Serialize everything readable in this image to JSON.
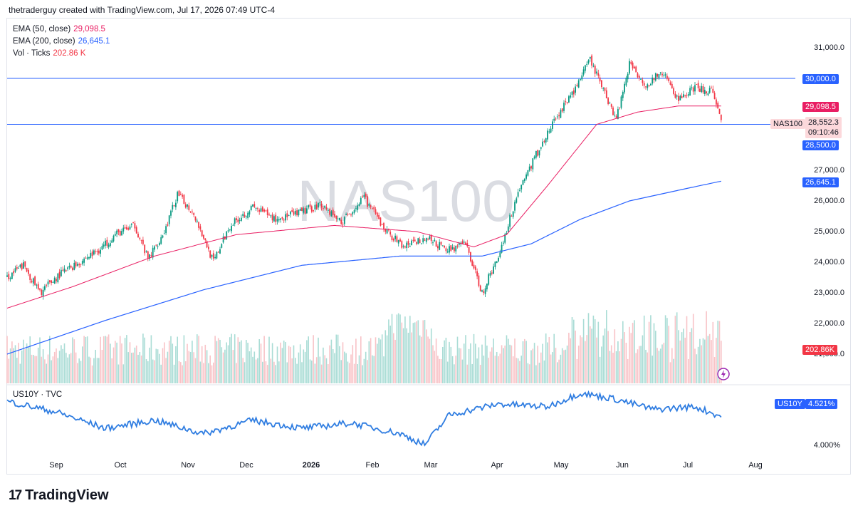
{
  "header": {
    "attribution": "thetraderguy created with TradingView.com, Jul 17, 2026 07:49 UTC-4"
  },
  "footer": {
    "brand": "TradingView",
    "logo_glyph": "17"
  },
  "legend": {
    "ema50": {
      "label": "EMA (50, close)",
      "value": "29,098.5",
      "color": "#e91e63"
    },
    "ema200": {
      "label": "EMA (200, close)",
      "value": "26,645.1",
      "color": "#2962ff"
    },
    "vol": {
      "label": "Vol · Ticks",
      "value": "202.86 K",
      "color": "#f23645"
    }
  },
  "watermark": "NAS100",
  "price_labels": {
    "line_30000": "30,000.0",
    "ema50": "29,098.5",
    "symbol": "NAS100",
    "last": "28,552.3",
    "countdown": "09:10:46",
    "line_28500": "28,500.0",
    "ema200": "26,645.1",
    "volume": "202.86K"
  },
  "colors": {
    "up": "#089981",
    "down": "#f23645",
    "ema50": "#e91e63",
    "ema200": "#2962ff",
    "hline": "#2962ff",
    "us10y": "#2f7de1",
    "vol_up": "#a9dcd5",
    "vol_down": "#f8c3c7"
  },
  "indicator": {
    "title": "US10Y · TVC",
    "tag": "US10Y",
    "value": "4.521%",
    "tick": "4.000%"
  },
  "chart_data": {
    "type": "candlestick",
    "watermark": "NAS100",
    "x_ticks": [
      "Sep",
      "Oct",
      "Nov",
      "Dec",
      "2026",
      "Feb",
      "Mar",
      "Apr",
      "May",
      "Jun",
      "Jul",
      "Aug"
    ],
    "y_ticks": [
      "31,000.0",
      "27,000.0",
      "26,000.0",
      "25,000.0",
      "24,000.0",
      "23,000.0",
      "22,000.0",
      "21,000.0"
    ],
    "y_range": [
      20500,
      31600
    ],
    "horizontal_lines": [
      30000,
      28500
    ],
    "close_path": [
      [
        0,
        23500
      ],
      [
        10,
        23900
      ],
      [
        20,
        23000
      ],
      [
        32,
        23600
      ],
      [
        44,
        24000
      ],
      [
        56,
        24400
      ],
      [
        66,
        24900
      ],
      [
        78,
        25200
      ],
      [
        86,
        24100
      ],
      [
        96,
        25000
      ],
      [
        104,
        26200
      ],
      [
        114,
        25600
      ],
      [
        126,
        24000
      ],
      [
        136,
        25200
      ],
      [
        150,
        25800
      ],
      [
        164,
        25400
      ],
      [
        178,
        25600
      ],
      [
        192,
        25900
      ],
      [
        204,
        25300
      ],
      [
        218,
        26100
      ],
      [
        230,
        25100
      ],
      [
        242,
        24500
      ],
      [
        256,
        24800
      ],
      [
        268,
        24400
      ],
      [
        280,
        24600
      ],
      [
        290,
        23000
      ],
      [
        300,
        24200
      ],
      [
        312,
        26300
      ],
      [
        322,
        27400
      ],
      [
        334,
        28600
      ],
      [
        346,
        29600
      ],
      [
        356,
        30600
      ],
      [
        366,
        29400
      ],
      [
        372,
        28700
      ],
      [
        380,
        30500
      ],
      [
        390,
        29800
      ],
      [
        400,
        30200
      ],
      [
        410,
        29300
      ],
      [
        420,
        29700
      ],
      [
        430,
        29600
      ],
      [
        436,
        28552
      ]
    ],
    "ema50_path": [
      [
        0,
        22500
      ],
      [
        40,
        23200
      ],
      [
        90,
        24200
      ],
      [
        140,
        24900
      ],
      [
        200,
        25200
      ],
      [
        250,
        25000
      ],
      [
        285,
        24500
      ],
      [
        305,
        24900
      ],
      [
        330,
        26500
      ],
      [
        360,
        28500
      ],
      [
        385,
        28900
      ],
      [
        410,
        29100
      ],
      [
        436,
        29098
      ]
    ],
    "ema200_path": [
      [
        0,
        21000
      ],
      [
        60,
        22100
      ],
      [
        120,
        23100
      ],
      [
        180,
        23900
      ],
      [
        240,
        24200
      ],
      [
        290,
        24200
      ],
      [
        320,
        24600
      ],
      [
        350,
        25400
      ],
      [
        380,
        26000
      ],
      [
        410,
        26350
      ],
      [
        436,
        26645
      ]
    ],
    "bar_count": 437,
    "us10y_path": [
      [
        0,
        4.8
      ],
      [
        30,
        4.6
      ],
      [
        60,
        4.3
      ],
      [
        90,
        4.45
      ],
      [
        120,
        4.2
      ],
      [
        150,
        4.45
      ],
      [
        180,
        4.3
      ],
      [
        210,
        4.4
      ],
      [
        240,
        4.2
      ],
      [
        255,
        4.0
      ],
      [
        270,
        4.55
      ],
      [
        300,
        4.75
      ],
      [
        330,
        4.7
      ],
      [
        350,
        4.95
      ],
      [
        370,
        4.85
      ],
      [
        395,
        4.65
      ],
      [
        420,
        4.7
      ],
      [
        436,
        4.521
      ]
    ],
    "us10y_last": 4.521
  }
}
